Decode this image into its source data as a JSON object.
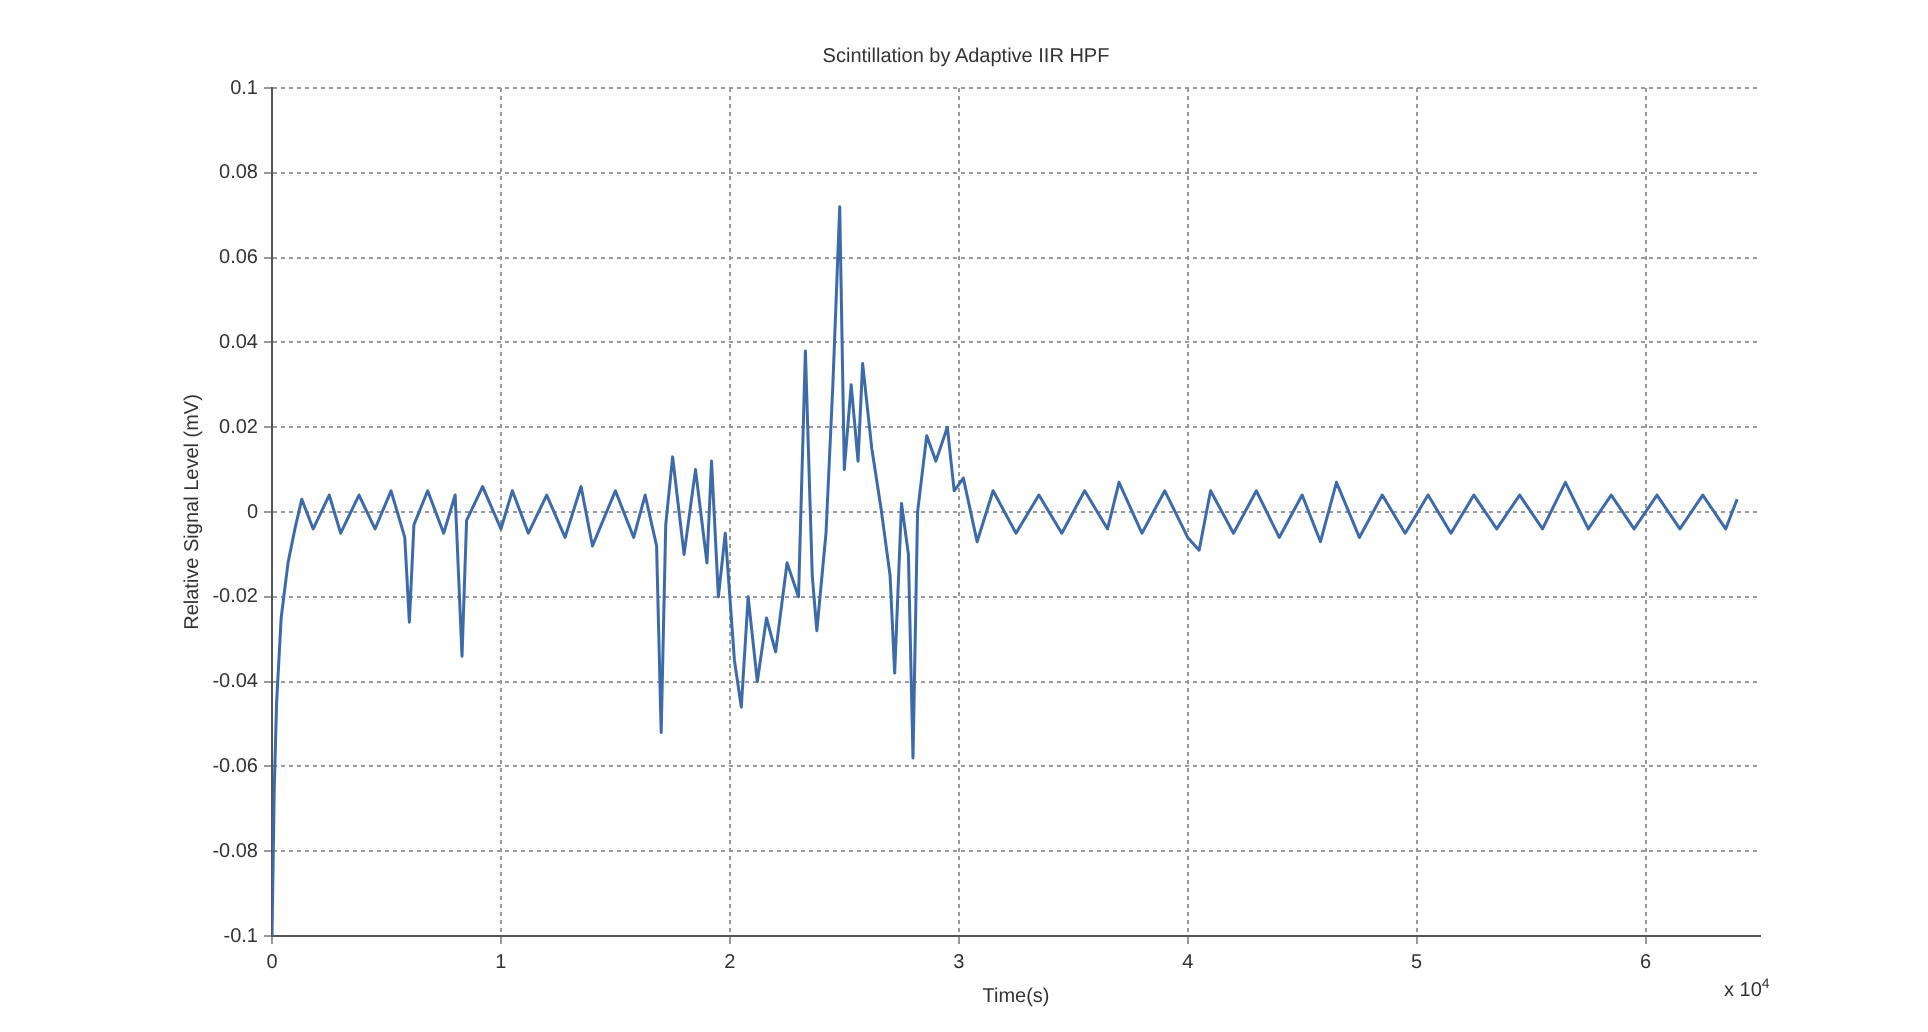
{
  "chart_data": {
    "type": "line",
    "title": "Scintillation by Adaptive IIR HPF",
    "xlabel": "Time(s)",
    "ylabel": "Relative Signal Level (mV)",
    "annotations": [
      "x 10$^{4}$"
    ],
    "xlim": [
      0,
      6.5
    ],
    "xticks": [
      0,
      1,
      2,
      3,
      4,
      5,
      6
    ],
    "ylim": [
      -0.1,
      0.1
    ],
    "yticks": [
      -0.1,
      -0.08,
      -0.06,
      -0.04,
      -0.02,
      0,
      0.02,
      0.04,
      0.06,
      0.08,
      0.1
    ],
    "grid": true,
    "marker": "none",
    "line_style": "solid",
    "series": [
      {
        "color": "#3d6aa8",
        "x": [
          0,
          0.01,
          0.02,
          0.04,
          0.07,
          0.1,
          0.13,
          0.18,
          0.25,
          0.3,
          0.38,
          0.45,
          0.52,
          0.58,
          0.6,
          0.62,
          0.68,
          0.75,
          0.8,
          0.83,
          0.85,
          0.92,
          1.0,
          1.05,
          1.12,
          1.2,
          1.28,
          1.35,
          1.4,
          1.5,
          1.58,
          1.63,
          1.68,
          1.7,
          1.72,
          1.75,
          1.8,
          1.85,
          1.9,
          1.92,
          1.95,
          1.98,
          2.02,
          2.05,
          2.08,
          2.12,
          2.16,
          2.2,
          2.25,
          2.3,
          2.33,
          2.36,
          2.38,
          2.42,
          2.45,
          2.48,
          2.5,
          2.53,
          2.56,
          2.58,
          2.62,
          2.66,
          2.7,
          2.72,
          2.75,
          2.78,
          2.8,
          2.82,
          2.86,
          2.9,
          2.95,
          2.98,
          3.02,
          3.08,
          3.15,
          3.25,
          3.35,
          3.45,
          3.55,
          3.65,
          3.7,
          3.8,
          3.9,
          4.0,
          4.05,
          4.1,
          4.2,
          4.3,
          4.4,
          4.5,
          4.58,
          4.65,
          4.75,
          4.85,
          4.95,
          5.05,
          5.15,
          5.25,
          5.35,
          5.45,
          5.55,
          5.65,
          5.75,
          5.85,
          5.95,
          6.05,
          6.15,
          6.25,
          6.35,
          6.4
        ],
        "values": [
          -0.1,
          -0.065,
          -0.045,
          -0.025,
          -0.012,
          -0.004,
          0.003,
          -0.004,
          0.004,
          -0.005,
          0.004,
          -0.004,
          0.005,
          -0.006,
          -0.026,
          -0.003,
          0.005,
          -0.005,
          0.004,
          -0.034,
          -0.002,
          0.006,
          -0.004,
          0.005,
          -0.005,
          0.004,
          -0.006,
          0.006,
          -0.008,
          0.005,
          -0.006,
          0.004,
          -0.008,
          -0.052,
          -0.003,
          0.013,
          -0.01,
          0.01,
          -0.012,
          0.012,
          -0.02,
          -0.005,
          -0.035,
          -0.046,
          -0.02,
          -0.04,
          -0.025,
          -0.033,
          -0.012,
          -0.02,
          0.038,
          -0.015,
          -0.028,
          -0.005,
          0.03,
          0.072,
          0.01,
          0.03,
          0.012,
          0.035,
          0.015,
          0.001,
          -0.015,
          -0.038,
          0.002,
          -0.01,
          -0.058,
          0.0,
          0.018,
          0.012,
          0.02,
          0.005,
          0.008,
          -0.007,
          0.005,
          -0.005,
          0.004,
          -0.005,
          0.005,
          -0.004,
          0.007,
          -0.005,
          0.005,
          -0.006,
          -0.009,
          0.005,
          -0.005,
          0.005,
          -0.006,
          0.004,
          -0.007,
          0.007,
          -0.006,
          0.004,
          -0.005,
          0.004,
          -0.005,
          0.004,
          -0.004,
          0.004,
          -0.004,
          0.007,
          -0.004,
          0.004,
          -0.004,
          0.004,
          -0.004,
          0.004,
          -0.004,
          0.003
        ]
      }
    ]
  }
}
